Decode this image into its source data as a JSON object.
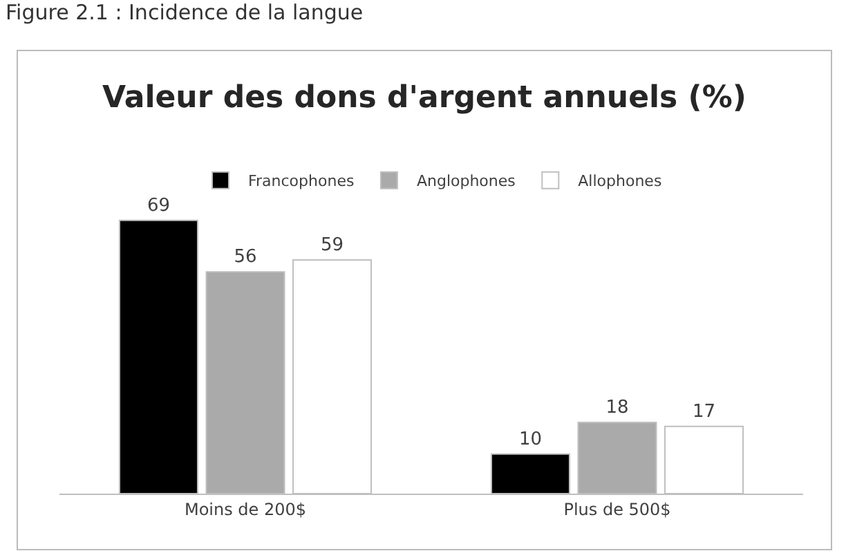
{
  "chart_data": {
    "type": "bar",
    "title": "Valeur des dons d'argent annuels (%)",
    "annotations": [
      "Figure 2.1 : Incidence de la langue"
    ],
    "categories": [
      "Moins de 200$",
      "Plus de 500$"
    ],
    "series": [
      {
        "name": "Francophones",
        "color": "#000000",
        "values": [
          69,
          10
        ]
      },
      {
        "name": "Anglophones",
        "color": "#aaaaaa",
        "values": [
          56,
          18
        ]
      },
      {
        "name": "Allophones",
        "color": "#ffffff",
        "values": [
          59,
          17
        ]
      }
    ],
    "data_labels": true,
    "legend": "top",
    "grid": false
  }
}
